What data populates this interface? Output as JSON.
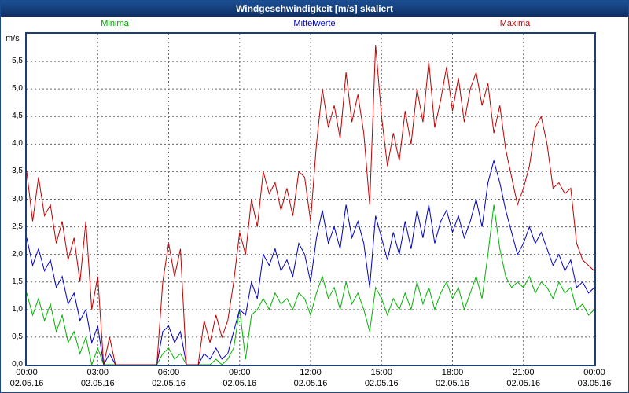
{
  "window": {
    "title": "Windgeschwindigkeit [m/s] skaliert"
  },
  "legend": {
    "minima": "Minima",
    "mittelwerte": "Mittelwerte",
    "maxima": "Maxima"
  },
  "axis": {
    "unit_label": "m/s"
  },
  "colors": {
    "minima": "#00b400",
    "mittelwerte": "#0000c8",
    "maxima": "#c00000",
    "grid": "#666666",
    "frame": "#1c3e73"
  },
  "chart_data": {
    "type": "line",
    "title": "Windgeschwindigkeit [m/s] skaliert",
    "xlabel": "",
    "ylabel": "m/s",
    "ylim": [
      0,
      6.0
    ],
    "grid": "dotted",
    "legend_position": "top",
    "x_start_hour": 0,
    "x_step_hours": 0.25,
    "x_end_hour": 24,
    "y_ticks": [
      {
        "value": 0.0,
        "label": "0,0"
      },
      {
        "value": 0.5,
        "label": "0,5"
      },
      {
        "value": 1.0,
        "label": "1,0"
      },
      {
        "value": 1.5,
        "label": "1,5"
      },
      {
        "value": 2.0,
        "label": "2,0"
      },
      {
        "value": 2.5,
        "label": "2,5"
      },
      {
        "value": 3.0,
        "label": "3,0"
      },
      {
        "value": 3.5,
        "label": "3,5"
      },
      {
        "value": 4.0,
        "label": "4,0"
      },
      {
        "value": 4.5,
        "label": "4,5"
      },
      {
        "value": 5.0,
        "label": "5,0"
      },
      {
        "value": 5.5,
        "label": "5,5"
      }
    ],
    "x_ticks": [
      {
        "hour": 0,
        "time": "00:00",
        "date": "02.05.16"
      },
      {
        "hour": 3,
        "time": "03:00",
        "date": "02.05.16"
      },
      {
        "hour": 6,
        "time": "06:00",
        "date": "02.05.16"
      },
      {
        "hour": 9,
        "time": "09:00",
        "date": "02.05.16"
      },
      {
        "hour": 12,
        "time": "12:00",
        "date": "02.05.16"
      },
      {
        "hour": 15,
        "time": "15:00",
        "date": "02.05.16"
      },
      {
        "hour": 18,
        "time": "18:00",
        "date": "02.05.16"
      },
      {
        "hour": 21,
        "time": "21:00",
        "date": "02.05.16"
      },
      {
        "hour": 24,
        "time": "00:00",
        "date": "03.05.16"
      }
    ],
    "series": [
      {
        "name": "Minima",
        "color": "#00b400",
        "values": [
          1.3,
          0.9,
          1.2,
          0.8,
          1.1,
          0.6,
          0.9,
          0.4,
          0.6,
          0.2,
          0.5,
          0.0,
          0.3,
          0.0,
          0.0,
          0.0,
          0.0,
          0.0,
          0.0,
          0.0,
          0.0,
          0.0,
          0.0,
          0.2,
          0.3,
          0.1,
          0.2,
          0.0,
          0.0,
          0.0,
          0.0,
          0.0,
          0.1,
          0.0,
          0.1,
          0.3,
          1.0,
          0.1,
          0.9,
          1.0,
          1.2,
          1.0,
          1.3,
          1.1,
          1.2,
          1.0,
          1.3,
          1.2,
          0.9,
          1.3,
          1.6,
          1.2,
          1.4,
          1.0,
          1.5,
          1.1,
          1.3,
          1.0,
          0.6,
          1.4,
          1.2,
          0.9,
          1.2,
          1.0,
          1.3,
          1.0,
          1.5,
          1.1,
          1.4,
          1.0,
          1.3,
          1.5,
          1.2,
          1.4,
          1.0,
          1.3,
          1.6,
          1.2,
          2.0,
          2.9,
          2.1,
          1.6,
          1.4,
          1.5,
          1.4,
          1.6,
          1.3,
          1.5,
          1.4,
          1.2,
          1.5,
          1.3,
          1.4,
          1.0,
          1.1,
          0.9,
          1.0
        ]
      },
      {
        "name": "Mittelwerte",
        "color": "#0000c8",
        "values": [
          2.3,
          1.8,
          2.1,
          1.7,
          1.9,
          1.4,
          1.6,
          1.1,
          1.3,
          0.8,
          1.0,
          0.4,
          0.7,
          0.0,
          0.2,
          0.0,
          0.0,
          0.0,
          0.0,
          0.0,
          0.0,
          0.0,
          0.0,
          0.6,
          0.7,
          0.4,
          0.6,
          0.0,
          0.0,
          0.0,
          0.2,
          0.1,
          0.3,
          0.1,
          0.2,
          0.6,
          1.0,
          0.9,
          1.5,
          1.2,
          2.0,
          1.8,
          2.1,
          1.7,
          1.9,
          1.6,
          2.2,
          2.0,
          1.5,
          2.3,
          2.8,
          2.2,
          2.5,
          2.1,
          2.9,
          2.3,
          2.6,
          2.2,
          1.4,
          2.7,
          2.3,
          1.9,
          2.4,
          2.0,
          2.6,
          2.1,
          2.8,
          2.3,
          2.9,
          2.2,
          2.6,
          2.8,
          2.4,
          2.7,
          2.3,
          2.6,
          3.0,
          2.5,
          3.3,
          3.7,
          3.3,
          2.8,
          2.4,
          2.0,
          2.2,
          2.5,
          2.2,
          2.4,
          2.1,
          1.8,
          2.0,
          1.7,
          1.9,
          1.4,
          1.5,
          1.3,
          1.4
        ]
      },
      {
        "name": "Maxima",
        "color": "#c00000",
        "values": [
          3.5,
          2.6,
          3.4,
          2.7,
          2.9,
          2.2,
          2.6,
          1.9,
          2.3,
          1.5,
          2.6,
          1.0,
          1.6,
          0.0,
          0.5,
          0.0,
          0.0,
          0.0,
          0.0,
          0.0,
          0.0,
          0.0,
          0.0,
          1.5,
          2.2,
          1.6,
          2.1,
          0.0,
          0.0,
          0.0,
          0.8,
          0.4,
          0.9,
          0.5,
          0.8,
          1.5,
          2.4,
          2.0,
          3.0,
          2.5,
          3.5,
          3.1,
          3.3,
          2.8,
          3.2,
          2.7,
          3.5,
          3.4,
          2.6,
          4.0,
          5.0,
          4.3,
          4.7,
          4.1,
          5.3,
          4.4,
          4.9,
          4.2,
          2.9,
          5.8,
          4.5,
          3.6,
          4.2,
          3.7,
          4.6,
          4.0,
          5.0,
          4.4,
          5.5,
          4.3,
          4.8,
          5.4,
          4.6,
          5.2,
          4.4,
          5.0,
          5.3,
          4.7,
          5.1,
          4.2,
          4.7,
          3.9,
          3.4,
          2.9,
          3.2,
          3.6,
          4.3,
          4.5,
          4.0,
          3.2,
          3.3,
          3.1,
          3.2,
          2.2,
          1.9,
          1.8,
          1.7
        ]
      }
    ]
  }
}
